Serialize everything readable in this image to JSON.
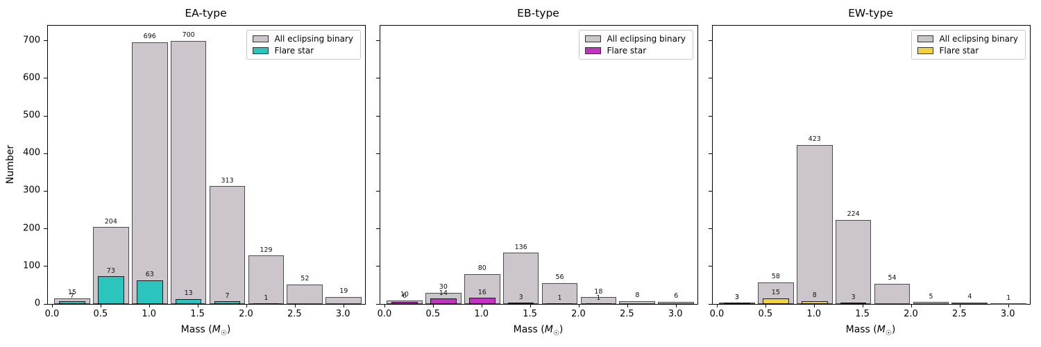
{
  "figure": {
    "background": "#ffffff",
    "ylabel": "Number",
    "xlabel": "Mass (M☉)",
    "colors": {
      "all_fill": "#ccc5cc",
      "all_edge": "#4a4a4a",
      "flare_edge": "#1a1a1a",
      "axis": "#000000",
      "bar_label_text": "#111111",
      "legend_border": "#c9c9c9"
    },
    "legend": {
      "all_label": "All eclipsing binary",
      "flare_label": "Flare star"
    }
  },
  "chart_data": [
    {
      "type": "bar",
      "title": "EA-type",
      "xlabel": "Mass (M☉)",
      "ylabel": "Number",
      "categories": [
        0.2,
        0.6,
        1.0,
        1.4,
        1.8,
        2.2,
        2.6,
        3.0
      ],
      "series": [
        {
          "name": "All eclipsing binary",
          "color": "#ccc5cc",
          "edge": "#4a4a4a",
          "bar_width": 0.37,
          "values": [
            15,
            204,
            696,
            700,
            313,
            129,
            52,
            19
          ]
        },
        {
          "name": "Flare star",
          "color": "#2bc5bd",
          "edge": "#1a1a1a",
          "bar_width": 0.27,
          "values": [
            7,
            73,
            63,
            13,
            7,
            1,
            0,
            0
          ]
        }
      ],
      "xlim": [
        -0.05,
        3.22
      ],
      "ylim": [
        0,
        740
      ],
      "x_tick_values": [
        0.0,
        0.5,
        1.0,
        1.5,
        2.0,
        2.5,
        3.0
      ],
      "x_tick_labels": [
        "0.0",
        "0.5",
        "1.0",
        "1.5",
        "2.0",
        "2.5",
        "3.0"
      ],
      "y_tick_values": [
        0,
        100,
        200,
        300,
        400,
        500,
        600,
        700
      ],
      "y_tick_labels": [
        "0",
        "100",
        "200",
        "300",
        "400",
        "500",
        "600",
        "700"
      ],
      "show_y_tick_labels": true,
      "show_ylabel": true,
      "grid": false,
      "legend_position": "upper right",
      "bar_labels": true
    },
    {
      "type": "bar",
      "title": "EB-type",
      "xlabel": "Mass (M☉)",
      "ylabel": "",
      "categories": [
        0.2,
        0.6,
        1.0,
        1.4,
        1.8,
        2.2,
        2.6,
        3.0
      ],
      "series": [
        {
          "name": "All eclipsing binary",
          "color": "#ccc5cc",
          "edge": "#4a4a4a",
          "bar_width": 0.37,
          "values": [
            10,
            30,
            80,
            136,
            56,
            18,
            8,
            6
          ]
        },
        {
          "name": "Flare star",
          "color": "#c133c1",
          "edge": "#1a1a1a",
          "bar_width": 0.27,
          "values": [
            6,
            14,
            16,
            3,
            1,
            1,
            0,
            0
          ]
        }
      ],
      "xlim": [
        -0.05,
        3.22
      ],
      "ylim": [
        0,
        740
      ],
      "x_tick_values": [
        0.0,
        0.5,
        1.0,
        1.5,
        2.0,
        2.5,
        3.0
      ],
      "x_tick_labels": [
        "0.0",
        "0.5",
        "1.0",
        "1.5",
        "2.0",
        "2.5",
        "3.0"
      ],
      "y_tick_values": [
        0,
        100,
        200,
        300,
        400,
        500,
        600,
        700
      ],
      "y_tick_labels": [
        "0",
        "100",
        "200",
        "300",
        "400",
        "500",
        "600",
        "700"
      ],
      "show_y_tick_labels": false,
      "show_ylabel": false,
      "grid": false,
      "legend_position": "upper right",
      "bar_labels": true
    },
    {
      "type": "bar",
      "title": "EW-type",
      "xlabel": "Mass (M☉)",
      "ylabel": "",
      "categories": [
        0.2,
        0.6,
        1.0,
        1.4,
        1.8,
        2.2,
        2.6,
        3.0
      ],
      "series": [
        {
          "name": "All eclipsing binary",
          "color": "#ccc5cc",
          "edge": "#4a4a4a",
          "bar_width": 0.37,
          "values": [
            3,
            58,
            423,
            224,
            54,
            5,
            4,
            1
          ]
        },
        {
          "name": "Flare star",
          "color": "#f2d33c",
          "edge": "#1a1a1a",
          "bar_width": 0.27,
          "values": [
            3,
            15,
            8,
            3,
            0,
            0,
            0,
            0
          ]
        }
      ],
      "xlim": [
        -0.05,
        3.22
      ],
      "ylim": [
        0,
        740
      ],
      "x_tick_values": [
        0.0,
        0.5,
        1.0,
        1.5,
        2.0,
        2.5,
        3.0
      ],
      "x_tick_labels": [
        "0.0",
        "0.5",
        "1.0",
        "1.5",
        "2.0",
        "2.5",
        "3.0"
      ],
      "y_tick_values": [
        0,
        100,
        200,
        300,
        400,
        500,
        600,
        700
      ],
      "y_tick_labels": [
        "0",
        "100",
        "200",
        "300",
        "400",
        "500",
        "600",
        "700"
      ],
      "show_y_tick_labels": false,
      "show_ylabel": false,
      "grid": false,
      "legend_position": "upper right",
      "bar_labels": true
    }
  ]
}
